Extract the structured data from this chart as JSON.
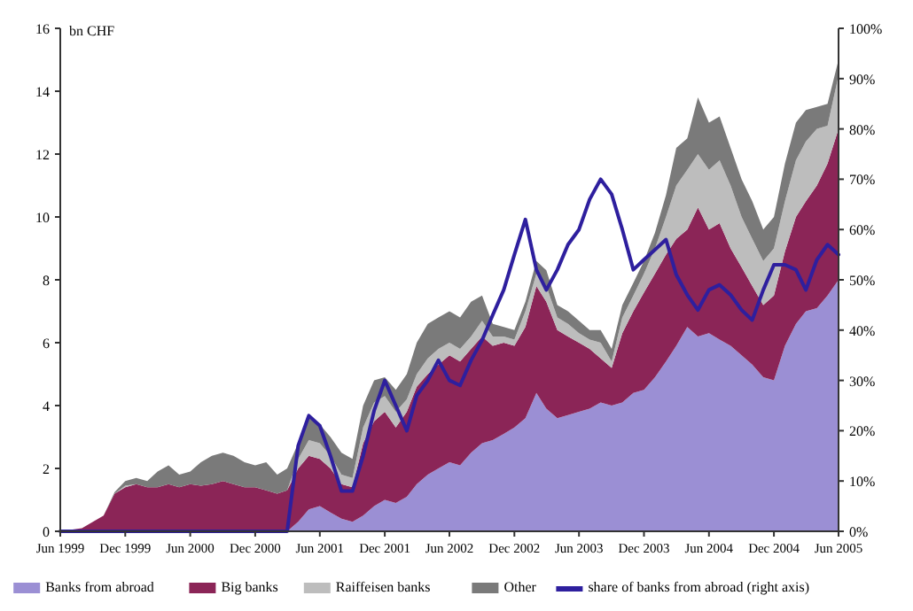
{
  "chart_data": {
    "type": "area",
    "stacked": true,
    "ylabel": "bn CHF",
    "legend": "bottom",
    "grid": false,
    "x": [
      "1999-06",
      "1999-07",
      "1999-08",
      "1999-09",
      "1999-10",
      "1999-11",
      "1999-12",
      "2000-01",
      "2000-02",
      "2000-03",
      "2000-04",
      "2000-05",
      "2000-06",
      "2000-07",
      "2000-08",
      "2000-09",
      "2000-10",
      "2000-11",
      "2000-12",
      "2001-01",
      "2001-02",
      "2001-03",
      "2001-04",
      "2001-05",
      "2001-06",
      "2001-07",
      "2001-08",
      "2001-09",
      "2001-10",
      "2001-11",
      "2001-12",
      "2002-01",
      "2002-02",
      "2002-03",
      "2002-04",
      "2002-05",
      "2002-06",
      "2002-07",
      "2002-08",
      "2002-09",
      "2002-10",
      "2002-11",
      "2002-12",
      "2003-01",
      "2003-02",
      "2003-03",
      "2003-04",
      "2003-05",
      "2003-06",
      "2003-07",
      "2003-08",
      "2003-09",
      "2003-10",
      "2003-11",
      "2003-12",
      "2004-01",
      "2004-02",
      "2004-03",
      "2004-04",
      "2004-05",
      "2004-06",
      "2004-07",
      "2004-08",
      "2004-09",
      "2004-10",
      "2004-11",
      "2004-12",
      "2005-01",
      "2005-02",
      "2005-03",
      "2005-04",
      "2005-05",
      "2005-06"
    ],
    "xlim": [
      "1999-06",
      "2005-06"
    ],
    "xticks": [
      {
        "value": "1999-06",
        "label": "Jun 1999"
      },
      {
        "value": "1999-12",
        "label": "Dec 1999"
      },
      {
        "value": "2000-06",
        "label": "Jun 2000"
      },
      {
        "value": "2000-12",
        "label": "Dec 2000"
      },
      {
        "value": "2001-06",
        "label": "Jun 2001"
      },
      {
        "value": "2001-12",
        "label": "Dec 2001"
      },
      {
        "value": "2002-06",
        "label": "Jun 2002"
      },
      {
        "value": "2002-12",
        "label": "Dec 2002"
      },
      {
        "value": "2003-06",
        "label": "Jun 2003"
      },
      {
        "value": "2003-12",
        "label": "Dec 2003"
      },
      {
        "value": "2004-06",
        "label": "Jun 2004"
      },
      {
        "value": "2004-12",
        "label": "Dec 2004"
      },
      {
        "value": "2005-06",
        "label": "Jun 2005"
      }
    ],
    "ylim": [
      0,
      16
    ],
    "yticks": [
      0,
      2,
      4,
      6,
      8,
      10,
      12,
      14,
      16
    ],
    "y2lim": [
      0,
      100
    ],
    "y2ticks": [
      {
        "value": 0,
        "label": "0%"
      },
      {
        "value": 10,
        "label": "10%"
      },
      {
        "value": 20,
        "label": "20%"
      },
      {
        "value": 30,
        "label": "30%"
      },
      {
        "value": 40,
        "label": "40%"
      },
      {
        "value": 50,
        "label": "50%"
      },
      {
        "value": 60,
        "label": "60%"
      },
      {
        "value": 70,
        "label": "70%"
      },
      {
        "value": 80,
        "label": "80%"
      },
      {
        "value": 90,
        "label": "90%"
      },
      {
        "value": 100,
        "label": "100%"
      }
    ],
    "series": [
      {
        "name": "Banks from abroad",
        "color": "#9b8fd4",
        "values": [
          0,
          0,
          0,
          0,
          0,
          0,
          0,
          0,
          0,
          0,
          0,
          0,
          0,
          0,
          0,
          0,
          0,
          0,
          0,
          0,
          0,
          0,
          0.3,
          0.7,
          0.8,
          0.6,
          0.4,
          0.3,
          0.5,
          0.8,
          1.0,
          0.9,
          1.1,
          1.5,
          1.8,
          2.0,
          2.2,
          2.1,
          2.5,
          2.8,
          2.9,
          3.1,
          3.3,
          3.6,
          4.4,
          3.9,
          3.6,
          3.7,
          3.8,
          3.9,
          4.1,
          4.0,
          4.1,
          4.4,
          4.5,
          4.9,
          5.4,
          5.9,
          6.5,
          6.2,
          6.3,
          6.1,
          5.9,
          5.6,
          5.3,
          4.9,
          4.8,
          5.9,
          6.6,
          7.0,
          7.1,
          7.5,
          8.0
        ]
      },
      {
        "name": "Big banks",
        "color": "#8b2557",
        "values": [
          0,
          0.05,
          0.1,
          0.3,
          0.5,
          1.2,
          1.4,
          1.5,
          1.4,
          1.4,
          1.5,
          1.4,
          1.5,
          1.45,
          1.5,
          1.6,
          1.5,
          1.4,
          1.4,
          1.3,
          1.2,
          1.3,
          1.7,
          1.7,
          1.5,
          1.4,
          1.1,
          1.1,
          2.3,
          2.7,
          2.8,
          2.4,
          2.7,
          3.1,
          3.2,
          3.3,
          3.4,
          3.3,
          3.3,
          3.4,
          3.0,
          2.9,
          2.6,
          2.9,
          3.4,
          3.4,
          2.8,
          2.5,
          2.2,
          1.9,
          1.4,
          1.2,
          2.2,
          2.6,
          3.1,
          3.3,
          3.4,
          3.4,
          3.1,
          4.1,
          3.3,
          3.7,
          3.1,
          2.8,
          2.5,
          2.3,
          2.7,
          3.0,
          3.4,
          3.5,
          3.9,
          4.2,
          4.8
        ]
      },
      {
        "name": "Raiffeisen banks",
        "color": "#bdbdbd",
        "values": [
          0,
          0,
          0,
          0,
          0,
          0,
          0.05,
          0,
          0,
          0,
          0,
          0,
          0,
          0,
          0,
          0,
          0,
          0,
          0,
          0,
          0,
          0,
          0.3,
          0.5,
          0.5,
          0.4,
          0.3,
          0.3,
          0.5,
          0.6,
          0.5,
          0.5,
          0.4,
          0.4,
          0.5,
          0.5,
          0.4,
          0.4,
          0.4,
          0.5,
          0.3,
          0.2,
          0.2,
          0.5,
          0.4,
          0.5,
          0.4,
          0.4,
          0.3,
          0.3,
          0.5,
          0.2,
          0.5,
          0.5,
          0.6,
          0.8,
          1.2,
          1.7,
          1.9,
          1.7,
          1.9,
          2.0,
          2.0,
          1.6,
          1.5,
          1.4,
          1.5,
          1.6,
          1.8,
          1.9,
          1.8,
          1.2,
          1.7
        ]
      },
      {
        "name": "Other",
        "color": "#7a7a7a",
        "values": [
          0,
          0,
          0,
          0,
          0,
          0.05,
          0.15,
          0.2,
          0.2,
          0.5,
          0.6,
          0.4,
          0.4,
          0.75,
          0.9,
          0.9,
          0.9,
          0.8,
          0.7,
          0.9,
          0.6,
          0.7,
          0.5,
          0.7,
          0.6,
          0.6,
          0.7,
          0.6,
          0.7,
          0.7,
          0.6,
          0.7,
          0.8,
          1.0,
          1.1,
          1.0,
          1.0,
          1.0,
          1.1,
          0.8,
          0.4,
          0.3,
          0.3,
          0.3,
          0.4,
          0.5,
          0.4,
          0.4,
          0.4,
          0.3,
          0.4,
          0.4,
          0.4,
          0.4,
          0.4,
          0.5,
          0.7,
          1.2,
          1.0,
          1.8,
          1.5,
          1.4,
          1.2,
          1.2,
          1.2,
          1.0,
          1.0,
          1.2,
          1.2,
          1.0,
          0.7,
          0.7,
          0.5
        ]
      },
      {
        "name": "share of banks from abroad (right axis)",
        "type": "line",
        "axis": "y2",
        "color": "#2e1f9e",
        "values": [
          0,
          0,
          0,
          0,
          0,
          0,
          0,
          0,
          0,
          0,
          0,
          0,
          0,
          0,
          0,
          0,
          0,
          0,
          0,
          0,
          0,
          0,
          17,
          23,
          21,
          15,
          8,
          8,
          15,
          24,
          30,
          25,
          20,
          27,
          30,
          34,
          30,
          29,
          34,
          38,
          43,
          48,
          55,
          62,
          52,
          48,
          52,
          57,
          60,
          66,
          70,
          67,
          60,
          52,
          54,
          56,
          58,
          51,
          47,
          44,
          48,
          49,
          47,
          44,
          42,
          48,
          53,
          53,
          52,
          48,
          54,
          57,
          55
        ]
      }
    ]
  }
}
